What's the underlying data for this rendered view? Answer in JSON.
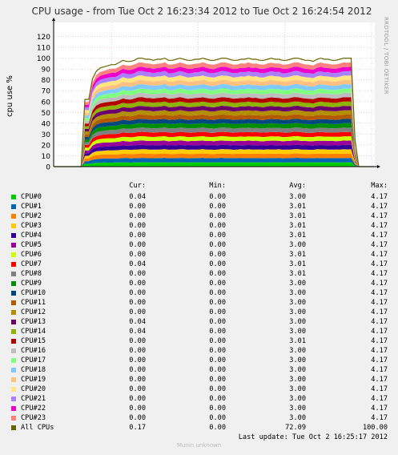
{
  "chart_data": {
    "type": "area",
    "stacked": true,
    "title": "CPU usage - from Tue Oct  2 16:23:34 2012 to Tue Oct  2 16:24:54 2012",
    "ylabel": "cpu use %",
    "xlabel": "",
    "ylim": [
      0,
      130
    ],
    "yticks": [
      0,
      10,
      20,
      30,
      40,
      50,
      60,
      70,
      80,
      90,
      100,
      110,
      120
    ],
    "grid": true,
    "x_count": 85,
    "total_profile": [
      0,
      0,
      0,
      0,
      0,
      0,
      0,
      0,
      62,
      62,
      81,
      88,
      91,
      92,
      93,
      94,
      94,
      96,
      98,
      97,
      97,
      98,
      100,
      100,
      99,
      99,
      98,
      99,
      99,
      100,
      98,
      98,
      99,
      100,
      99,
      98,
      98,
      99,
      99,
      100,
      99,
      98,
      98,
      99,
      100,
      100,
      99,
      98,
      98,
      99,
      99,
      100,
      99,
      99,
      98,
      98,
      99,
      100,
      99,
      99,
      98,
      98,
      99,
      100,
      100,
      99,
      98,
      98,
      97,
      99,
      100,
      99,
      99,
      98,
      98,
      99,
      100,
      100,
      100,
      25,
      0,
      0,
      0,
      0,
      0
    ],
    "cpu_shares": [
      0.04,
      0.04,
      0.04,
      0.04,
      0.04,
      0.04,
      0.04,
      0.04,
      0.04,
      0.04,
      0.04,
      0.04,
      0.04,
      0.04,
      0.04,
      0.04,
      0.04,
      0.04,
      0.04,
      0.04,
      0.04,
      0.04,
      0.04,
      0.04
    ]
  },
  "side_label": "RRDTOOL / TOBI OETIKER",
  "headers": {
    "cur": "Cur:",
    "min": "Min:",
    "avg": "Avg:",
    "max": "Max:"
  },
  "legend": [
    {
      "name": "CPU#0",
      "color": "#00CC00",
      "cur": "0.04",
      "min": "0.00",
      "avg": "3.00",
      "max": "4.17"
    },
    {
      "name": "CPU#1",
      "color": "#0066B3",
      "cur": "0.00",
      "min": "0.00",
      "avg": "3.01",
      "max": "4.17"
    },
    {
      "name": "CPU#2",
      "color": "#FF8000",
      "cur": "0.00",
      "min": "0.00",
      "avg": "3.01",
      "max": "4.17"
    },
    {
      "name": "CPU#3",
      "color": "#FFCC00",
      "cur": "0.00",
      "min": "0.00",
      "avg": "3.01",
      "max": "4.17"
    },
    {
      "name": "CPU#4",
      "color": "#330099",
      "cur": "0.00",
      "min": "0.00",
      "avg": "3.01",
      "max": "4.17"
    },
    {
      "name": "CPU#5",
      "color": "#990099",
      "cur": "0.00",
      "min": "0.00",
      "avg": "3.00",
      "max": "4.17"
    },
    {
      "name": "CPU#6",
      "color": "#CCFF00",
      "cur": "0.00",
      "min": "0.00",
      "avg": "3.01",
      "max": "4.17"
    },
    {
      "name": "CPU#7",
      "color": "#FF0000",
      "cur": "0.04",
      "min": "0.00",
      "avg": "3.01",
      "max": "4.17"
    },
    {
      "name": "CPU#8",
      "color": "#808080",
      "cur": "0.00",
      "min": "0.00",
      "avg": "3.01",
      "max": "4.17"
    },
    {
      "name": "CPU#9",
      "color": "#008F00",
      "cur": "0.00",
      "min": "0.00",
      "avg": "3.00",
      "max": "4.17"
    },
    {
      "name": "CPU#10",
      "color": "#00487D",
      "cur": "0.00",
      "min": "0.00",
      "avg": "3.00",
      "max": "4.17"
    },
    {
      "name": "CPU#11",
      "color": "#B35A00",
      "cur": "0.00",
      "min": "0.00",
      "avg": "3.00",
      "max": "4.17"
    },
    {
      "name": "CPU#12",
      "color": "#B38F00",
      "cur": "0.00",
      "min": "0.00",
      "avg": "3.00",
      "max": "4.17"
    },
    {
      "name": "CPU#13",
      "color": "#6B006B",
      "cur": "0.04",
      "min": "0.00",
      "avg": "3.00",
      "max": "4.17"
    },
    {
      "name": "CPU#14",
      "color": "#8FB300",
      "cur": "0.04",
      "min": "0.00",
      "avg": "3.00",
      "max": "4.17"
    },
    {
      "name": "CPU#15",
      "color": "#B30000",
      "cur": "0.00",
      "min": "0.00",
      "avg": "3.01",
      "max": "4.17"
    },
    {
      "name": "CPU#16",
      "color": "#BEBEBE",
      "cur": "0.00",
      "min": "0.00",
      "avg": "3.00",
      "max": "4.17"
    },
    {
      "name": "CPU#17",
      "color": "#80FF80",
      "cur": "0.00",
      "min": "0.00",
      "avg": "3.00",
      "max": "4.17"
    },
    {
      "name": "CPU#18",
      "color": "#80C9FF",
      "cur": "0.00",
      "min": "0.00",
      "avg": "3.00",
      "max": "4.17"
    },
    {
      "name": "CPU#19",
      "color": "#FFC080",
      "cur": "0.00",
      "min": "0.00",
      "avg": "3.00",
      "max": "4.17"
    },
    {
      "name": "CPU#20",
      "color": "#FFE680",
      "cur": "0.00",
      "min": "0.00",
      "avg": "3.00",
      "max": "4.17"
    },
    {
      "name": "CPU#21",
      "color": "#AA80FF",
      "cur": "0.00",
      "min": "0.00",
      "avg": "3.00",
      "max": "4.17"
    },
    {
      "name": "CPU#22",
      "color": "#EE00CC",
      "cur": "0.00",
      "min": "0.00",
      "avg": "3.00",
      "max": "4.17"
    },
    {
      "name": "CPU#23",
      "color": "#FF8080",
      "cur": "0.00",
      "min": "0.00",
      "avg": "3.00",
      "max": "4.17"
    },
    {
      "name": "All CPUs",
      "color": "#666600",
      "cur": "0.17",
      "min": "0.00",
      "avg": "72.09",
      "max": "100.00"
    }
  ],
  "last_update": "Last update:  Tue Oct  2 16:25:17 2012",
  "footer": "Munin unknown"
}
